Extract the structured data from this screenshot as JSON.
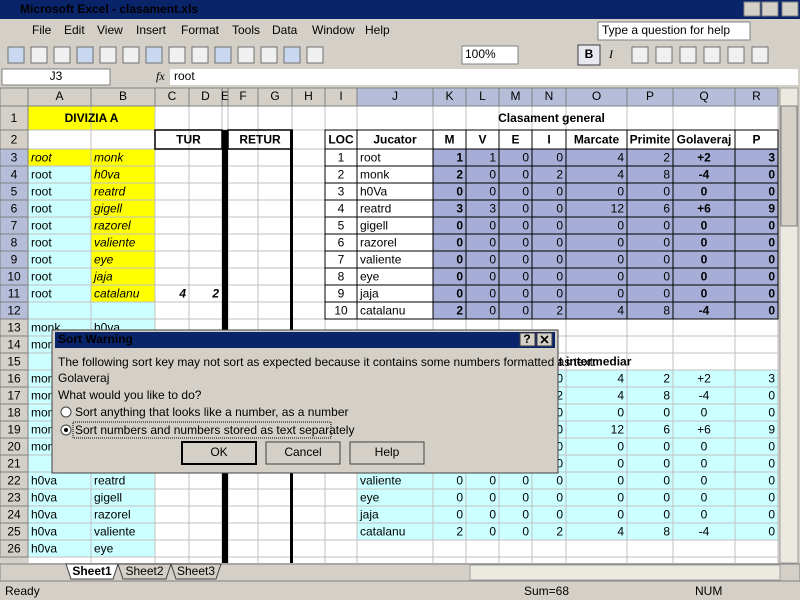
{
  "title_bar": {
    "title": "Microsoft Excel - clasament.xls"
  },
  "menu_bar": {
    "items": [
      "File",
      "Edit",
      "View",
      "Insert",
      "Format",
      "Tools",
      "Data",
      "Window",
      "Help"
    ],
    "help_box": "Type a question for help"
  },
  "toolbar": {
    "zoom": "100%",
    "bold": "B",
    "italic": "I"
  },
  "formula_bar": {
    "name_box": "J3",
    "fx": "fx",
    "content": "root"
  },
  "sheet": {
    "columns": [
      "A",
      "B",
      "C",
      "D",
      "E",
      "F",
      "G",
      "H",
      "I",
      "J",
      "K",
      "L",
      "M",
      "N",
      "O",
      "P",
      "Q",
      "R"
    ],
    "rows": [
      1,
      2,
      3,
      4,
      5,
      6,
      7,
      8,
      9,
      10,
      11,
      12,
      13,
      14,
      15,
      16,
      17,
      18,
      19,
      20,
      21,
      22,
      23,
      24,
      25,
      26
    ],
    "grid": [
      [
        "DIVIZIA A",
        null,
        null,
        null,
        null,
        null,
        null,
        null,
        "Clasament general",
        null,
        null,
        null,
        null,
        null,
        null,
        null,
        null,
        null
      ],
      [
        null,
        null,
        "TUR",
        null,
        null,
        "RETUR",
        null,
        null,
        "LOC",
        "Jucator",
        "M",
        "V",
        "E",
        "I",
        "Marcate",
        "Primite",
        "Golaveraj",
        "P"
      ],
      [
        "root",
        "monk",
        null,
        null,
        null,
        null,
        null,
        null,
        1,
        "root",
        1,
        1,
        0,
        0,
        4,
        2,
        "+2",
        3
      ],
      [
        "root",
        "h0va",
        null,
        null,
        null,
        null,
        null,
        null,
        2,
        "monk",
        2,
        0,
        0,
        2,
        4,
        8,
        "-4",
        0
      ],
      [
        "root",
        "reatrd",
        null,
        null,
        null,
        null,
        null,
        null,
        3,
        "h0Va",
        0,
        0,
        0,
        0,
        0,
        0,
        0,
        0
      ],
      [
        "root",
        "gigell",
        null,
        null,
        null,
        null,
        null,
        null,
        4,
        "reatrd",
        3,
        3,
        0,
        0,
        12,
        6,
        "+6",
        9
      ],
      [
        "root",
        "razorel",
        null,
        null,
        null,
        null,
        null,
        null,
        5,
        "gigell",
        0,
        0,
        0,
        0,
        0,
        0,
        0,
        0
      ],
      [
        "root",
        "valiente",
        null,
        null,
        null,
        null,
        null,
        null,
        6,
        "razorel",
        0,
        0,
        0,
        0,
        0,
        0,
        0,
        0
      ],
      [
        "root",
        "eye",
        null,
        null,
        null,
        null,
        null,
        null,
        7,
        "valiente",
        0,
        0,
        0,
        0,
        0,
        0,
        0,
        0
      ],
      [
        "root",
        "jaja",
        null,
        null,
        null,
        null,
        null,
        null,
        8,
        "eye",
        0,
        0,
        0,
        0,
        0,
        0,
        0,
        0
      ],
      [
        "root",
        "catalanu",
        4,
        2,
        null,
        null,
        null,
        null,
        9,
        "jaja",
        0,
        0,
        0,
        0,
        0,
        0,
        0,
        0
      ],
      [
        null,
        null,
        null,
        null,
        null,
        null,
        null,
        null,
        10,
        "catalanu",
        2,
        0,
        0,
        2,
        4,
        8,
        "-4",
        0
      ],
      [
        "monk",
        "h0va",
        null,
        null,
        null,
        null,
        null,
        null,
        null,
        null,
        null,
        null,
        null,
        null,
        null,
        null,
        null,
        null
      ],
      [
        "monk",
        null,
        null,
        null,
        null,
        null,
        null,
        null,
        null,
        null,
        null,
        null,
        null,
        null,
        null,
        null,
        null,
        null
      ],
      [
        null,
        null,
        null,
        null,
        null,
        null,
        null,
        null,
        "Clasament intermediar",
        null,
        null,
        null,
        null,
        null,
        null,
        null,
        null,
        null
      ],
      [
        "monk",
        null,
        null,
        null,
        null,
        null,
        null,
        null,
        null,
        null,
        null,
        null,
        null,
        0,
        4,
        2,
        "+2",
        3
      ],
      [
        "monk",
        null,
        null,
        null,
        null,
        null,
        null,
        null,
        null,
        null,
        null,
        null,
        null,
        2,
        4,
        8,
        "-4",
        0
      ],
      [
        "monk",
        null,
        null,
        null,
        null,
        null,
        null,
        null,
        null,
        null,
        null,
        null,
        null,
        0,
        0,
        0,
        0,
        0
      ],
      [
        "monk",
        null,
        null,
        null,
        null,
        null,
        null,
        null,
        null,
        null,
        null,
        null,
        null,
        0,
        12,
        6,
        "+6",
        9
      ],
      [
        "monk",
        null,
        null,
        null,
        null,
        null,
        null,
        null,
        null,
        null,
        null,
        null,
        null,
        0,
        0,
        0,
        0,
        0
      ],
      [
        null,
        null,
        null,
        null,
        null,
        null,
        null,
        null,
        null,
        null,
        null,
        null,
        null,
        0,
        0,
        0,
        0,
        0
      ],
      [
        "h0va",
        "reatrd",
        null,
        null,
        null,
        null,
        null,
        null,
        null,
        "valiente",
        0,
        0,
        0,
        0,
        0,
        0,
        0,
        0
      ],
      [
        "h0va",
        "gigell",
        null,
        null,
        null,
        null,
        null,
        null,
        null,
        "eye",
        0,
        0,
        0,
        0,
        0,
        0,
        0,
        0
      ],
      [
        "h0va",
        "razorel",
        null,
        null,
        null,
        null,
        null,
        null,
        null,
        "jaja",
        0,
        0,
        0,
        0,
        0,
        0,
        0,
        0
      ],
      [
        "h0va",
        "valiente",
        null,
        null,
        null,
        null,
        null,
        null,
        null,
        "catalanu",
        2,
        0,
        0,
        2,
        4,
        8,
        "-4",
        0
      ],
      [
        "h0va",
        "eye",
        null,
        null,
        null,
        null,
        null,
        null,
        null,
        null,
        null,
        null,
        null,
        null,
        null,
        null,
        null,
        null
      ]
    ]
  },
  "dialog": {
    "title": "Sort Warning",
    "help_glyph": "?",
    "message": "The following sort key may not sort as expected because it contains some numbers formatted as text:",
    "key": "Golaveraj",
    "question": "What would you like to do?",
    "options": [
      "Sort anything that looks like a number, as a number",
      "Sort numbers and numbers stored as text separately"
    ],
    "selected": 1,
    "buttons": [
      "OK",
      "Cancel",
      "Help"
    ]
  },
  "sheet_tabs": [
    "Sheet1",
    "Sheet2",
    "Sheet3"
  ],
  "status_bar": {
    "state": "Ready",
    "sum": "Sum=68",
    "mode": "NUM"
  }
}
